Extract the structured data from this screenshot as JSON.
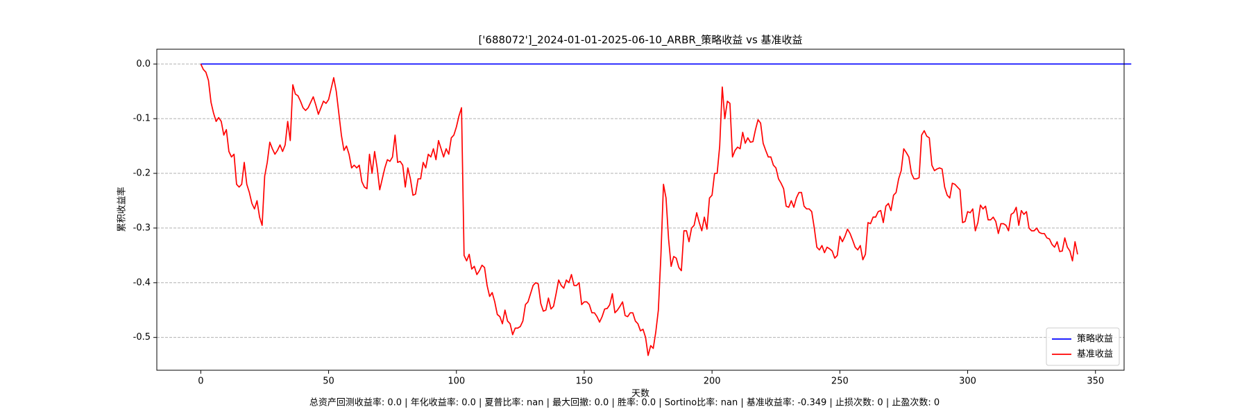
{
  "chart_data": {
    "type": "line",
    "title": "['688072']_2024-01-01-2025-06-10_ARBR_策略收益 vs 基准收益",
    "x_label": "天数",
    "y_label": "累积收益率",
    "footer": "总资产回测收益率: 0.0 | 年化收益率: 0.0 | 夏普比率: nan | 最大回撤: 0.0 | 胜率: 0.0 | Sortino比率: nan | 基准收益率: -0.349 | 止损次数: 0 | 止盈次数: 0",
    "xlim": [
      -17.2,
      361.2
    ],
    "xticks": [
      0,
      50,
      100,
      150,
      200,
      250,
      300,
      350
    ],
    "ylim": [
      -0.56,
      0.027
    ],
    "yticks": [
      {
        "value": 0,
        "label": "0.0"
      },
      -0.1,
      -0.2,
      -0.3,
      -0.4,
      -0.5
    ],
    "grid": "y",
    "legend": "lower right",
    "series": [
      {
        "name": "策略收益",
        "color": "#0000ff",
        "values": [
          0,
          0,
          0,
          0,
          0,
          0,
          0,
          0,
          0,
          0,
          0,
          0,
          0,
          0,
          0,
          0,
          0,
          0,
          0,
          0,
          0,
          0,
          0,
          0,
          0,
          0,
          0,
          0,
          0,
          0,
          0,
          0,
          0,
          0,
          0,
          0,
          0,
          0,
          0,
          0,
          0,
          0,
          0,
          0,
          0,
          0,
          0,
          0,
          0,
          0,
          0,
          0,
          0,
          0,
          0,
          0,
          0,
          0,
          0,
          0,
          0,
          0,
          0,
          0,
          0,
          0,
          0,
          0,
          0,
          0,
          0,
          0,
          0,
          0,
          0,
          0,
          0,
          0,
          0,
          0,
          0,
          0,
          0,
          0,
          0,
          0,
          0,
          0,
          0,
          0,
          0,
          0,
          0,
          0,
          0,
          0,
          0,
          0,
          0,
          0,
          0,
          0,
          0,
          0,
          0,
          0,
          0,
          0,
          0,
          0,
          0,
          0,
          0,
          0,
          0,
          0,
          0,
          0,
          0,
          0,
          0,
          0,
          0,
          0,
          0,
          0,
          0,
          0,
          0,
          0,
          0,
          0,
          0,
          0,
          0,
          0,
          0,
          0,
          0,
          0,
          0,
          0,
          0,
          0,
          0,
          0,
          0,
          0,
          0,
          0,
          0,
          0,
          0,
          0,
          0,
          0,
          0,
          0,
          0,
          0,
          0,
          0,
          0,
          0,
          0,
          0,
          0,
          0,
          0,
          0,
          0,
          0,
          0,
          0,
          0,
          0,
          0,
          0,
          0,
          0,
          0,
          0,
          0,
          0,
          0,
          0,
          0,
          0,
          0,
          0,
          0,
          0,
          0,
          0,
          0,
          0,
          0,
          0,
          0,
          0,
          0,
          0,
          0,
          0,
          0,
          0,
          0,
          0,
          0,
          0,
          0,
          0,
          0,
          0,
          0,
          0,
          0,
          0,
          0,
          0,
          0,
          0,
          0,
          0,
          0,
          0,
          0,
          0,
          0,
          0,
          0,
          0,
          0,
          0,
          0,
          0,
          0,
          0,
          0,
          0,
          0,
          0,
          0,
          0,
          0,
          0,
          0,
          0,
          0,
          0,
          0,
          0,
          0,
          0,
          0,
          0,
          0,
          0,
          0,
          0,
          0,
          0,
          0,
          0,
          0,
          0,
          0,
          0,
          0,
          0,
          0,
          0,
          0,
          0,
          0,
          0,
          0,
          0,
          0,
          0,
          0,
          0,
          0,
          0,
          0,
          0,
          0,
          0,
          0,
          0,
          0,
          0,
          0,
          0,
          0,
          0,
          0,
          0,
          0,
          0,
          0,
          0,
          0,
          0,
          0,
          0,
          0,
          0,
          0,
          0,
          0,
          0,
          0,
          0,
          0,
          0,
          0,
          0,
          0,
          0,
          0,
          0,
          0,
          0,
          0,
          0,
          0,
          0,
          0,
          0,
          0,
          0,
          0,
          0,
          0,
          0,
          0,
          0,
          0,
          0,
          0,
          0,
          0,
          0,
          0,
          0,
          0,
          0,
          0,
          0,
          0,
          0,
          0,
          0,
          0,
          0,
          0,
          0,
          0,
          0,
          0,
          0,
          0,
          0,
          0
        ]
      },
      {
        "name": "基准收益",
        "color": "#ff0000",
        "values": [
          0,
          -0.01,
          -0.015,
          -0.03,
          -0.07,
          -0.09,
          -0.105,
          -0.098,
          -0.105,
          -0.13,
          -0.12,
          -0.16,
          -0.17,
          -0.165,
          -0.22,
          -0.225,
          -0.22,
          -0.18,
          -0.22,
          -0.235,
          -0.255,
          -0.265,
          -0.25,
          -0.28,
          -0.295,
          -0.205,
          -0.18,
          -0.143,
          -0.155,
          -0.165,
          -0.158,
          -0.148,
          -0.16,
          -0.148,
          -0.105,
          -0.14,
          -0.038,
          -0.055,
          -0.058,
          -0.068,
          -0.08,
          -0.085,
          -0.08,
          -0.07,
          -0.06,
          -0.075,
          -0.092,
          -0.08,
          -0.068,
          -0.072,
          -0.065,
          -0.045,
          -0.025,
          -0.05,
          -0.09,
          -0.13,
          -0.158,
          -0.15,
          -0.165,
          -0.19,
          -0.185,
          -0.19,
          -0.185,
          -0.215,
          -0.225,
          -0.228,
          -0.165,
          -0.2,
          -0.16,
          -0.19,
          -0.23,
          -0.21,
          -0.19,
          -0.175,
          -0.178,
          -0.17,
          -0.13,
          -0.18,
          -0.178,
          -0.185,
          -0.225,
          -0.19,
          -0.21,
          -0.24,
          -0.238,
          -0.21,
          -0.21,
          -0.18,
          -0.19,
          -0.165,
          -0.17,
          -0.155,
          -0.175,
          -0.14,
          -0.155,
          -0.17,
          -0.155,
          -0.165,
          -0.135,
          -0.13,
          -0.115,
          -0.095,
          -0.08,
          -0.35,
          -0.36,
          -0.348,
          -0.375,
          -0.37,
          -0.385,
          -0.378,
          -0.368,
          -0.372,
          -0.405,
          -0.425,
          -0.418,
          -0.435,
          -0.458,
          -0.462,
          -0.475,
          -0.45,
          -0.47,
          -0.475,
          -0.495,
          -0.483,
          -0.483,
          -0.48,
          -0.47,
          -0.44,
          -0.435,
          -0.42,
          -0.405,
          -0.4,
          -0.402,
          -0.438,
          -0.452,
          -0.45,
          -0.428,
          -0.448,
          -0.443,
          -0.42,
          -0.395,
          -0.405,
          -0.41,
          -0.395,
          -0.4,
          -0.385,
          -0.405,
          -0.405,
          -0.4,
          -0.44,
          -0.435,
          -0.435,
          -0.44,
          -0.455,
          -0.455,
          -0.462,
          -0.472,
          -0.462,
          -0.448,
          -0.447,
          -0.44,
          -0.42,
          -0.455,
          -0.45,
          -0.443,
          -0.435,
          -0.46,
          -0.462,
          -0.455,
          -0.455,
          -0.47,
          -0.475,
          -0.488,
          -0.485,
          -0.5,
          -0.533,
          -0.515,
          -0.52,
          -0.49,
          -0.45,
          -0.35,
          -0.22,
          -0.245,
          -0.32,
          -0.37,
          -0.352,
          -0.355,
          -0.372,
          -0.378,
          -0.305,
          -0.305,
          -0.325,
          -0.3,
          -0.295,
          -0.272,
          -0.29,
          -0.305,
          -0.28,
          -0.302,
          -0.245,
          -0.24,
          -0.2,
          -0.2,
          -0.15,
          -0.042,
          -0.1,
          -0.068,
          -0.072,
          -0.17,
          -0.158,
          -0.152,
          -0.155,
          -0.125,
          -0.145,
          -0.135,
          -0.143,
          -0.142,
          -0.12,
          -0.102,
          -0.108,
          -0.145,
          -0.158,
          -0.17,
          -0.17,
          -0.185,
          -0.19,
          -0.21,
          -0.218,
          -0.228,
          -0.26,
          -0.262,
          -0.25,
          -0.262,
          -0.245,
          -0.235,
          -0.235,
          -0.26,
          -0.265,
          -0.265,
          -0.27,
          -0.3,
          -0.335,
          -0.34,
          -0.332,
          -0.345,
          -0.335,
          -0.338,
          -0.342,
          -0.355,
          -0.35,
          -0.315,
          -0.325,
          -0.315,
          -0.302,
          -0.31,
          -0.322,
          -0.335,
          -0.34,
          -0.332,
          -0.358,
          -0.348,
          -0.29,
          -0.292,
          -0.28,
          -0.28,
          -0.27,
          -0.268,
          -0.29,
          -0.26,
          -0.255,
          -0.268,
          -0.24,
          -0.235,
          -0.21,
          -0.195,
          -0.155,
          -0.162,
          -0.17,
          -0.2,
          -0.21,
          -0.21,
          -0.208,
          -0.13,
          -0.122,
          -0.132,
          -0.135,
          -0.185,
          -0.195,
          -0.192,
          -0.19,
          -0.192,
          -0.225,
          -0.24,
          -0.245,
          -0.218,
          -0.22,
          -0.225,
          -0.23,
          -0.29,
          -0.288,
          -0.27,
          -0.272,
          -0.265,
          -0.305,
          -0.29,
          -0.258,
          -0.265,
          -0.26,
          -0.285,
          -0.285,
          -0.28,
          -0.288,
          -0.31,
          -0.292,
          -0.292,
          -0.295,
          -0.305,
          -0.275,
          -0.272,
          -0.262,
          -0.295,
          -0.268,
          -0.275,
          -0.27,
          -0.3,
          -0.305,
          -0.305,
          -0.3,
          -0.308,
          -0.31,
          -0.31,
          -0.318,
          -0.32,
          -0.33,
          -0.335,
          -0.325,
          -0.343,
          -0.342,
          -0.318,
          -0.335,
          -0.342,
          -0.36,
          -0.325,
          -0.348
        ]
      }
    ]
  }
}
